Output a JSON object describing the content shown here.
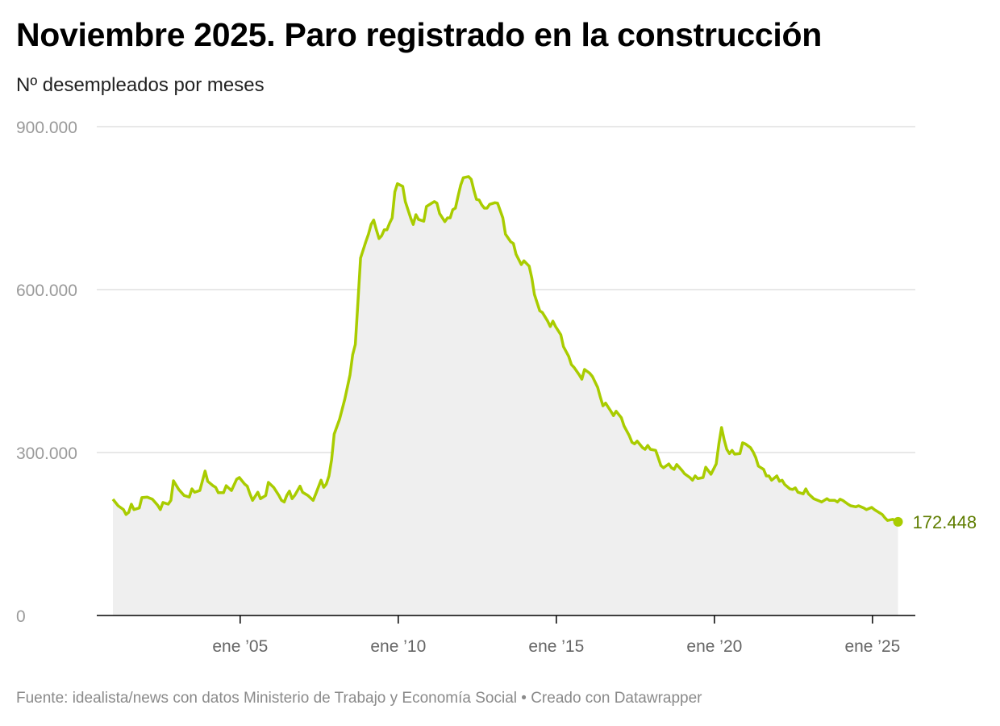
{
  "title": "Noviembre 2025. Paro registrado en la construcción",
  "subtitle": "Nº desempleados por meses",
  "footer": "Fuente: idealista/news con datos Ministerio de Trabajo y Economía Social • Creado con Datawrapper",
  "colors": {
    "line": "#a9cc00",
    "area": "#efefef",
    "grid": "#e1e1e1",
    "end_label": "#5f7d00"
  },
  "chart_data": {
    "type": "area",
    "title": "Noviembre 2025. Paro registrado en la construcción",
    "subtitle": "Nº desempleados por meses",
    "xlabel": "",
    "ylabel": "",
    "ylim": [
      0,
      900000
    ],
    "grid": true,
    "y_ticks": [
      {
        "value": 0,
        "label": "0"
      },
      {
        "value": 300000,
        "label": "300.000"
      },
      {
        "value": 600000,
        "label": "600.000"
      },
      {
        "value": 900000,
        "label": "900.000"
      }
    ],
    "x_ticks": [
      {
        "value": "2005-01",
        "label": "ene ’05"
      },
      {
        "value": "2010-01",
        "label": "ene ’10"
      },
      {
        "value": "2015-01",
        "label": "ene ’15"
      },
      {
        "value": "2020-01",
        "label": "ene ’20"
      },
      {
        "value": "2025-01",
        "label": "ene ’25"
      }
    ],
    "end_label": "172.448",
    "x": [
      "2001-01",
      "2001-03",
      "2001-05",
      "2001-06",
      "2001-07",
      "2001-08",
      "2001-09",
      "2001-11",
      "2001-12",
      "2002-02",
      "2002-04",
      "2002-06",
      "2002-07",
      "2002-08",
      "2002-10",
      "2002-11",
      "2002-12",
      "2003-02",
      "2003-04",
      "2003-06",
      "2003-07",
      "2003-08",
      "2003-10",
      "2003-12",
      "2004-01",
      "2004-03",
      "2004-04",
      "2004-05",
      "2004-07",
      "2004-08",
      "2004-10",
      "2004-12",
      "2005-01",
      "2005-03",
      "2005-04",
      "2005-05",
      "2005-06",
      "2005-08",
      "2005-09",
      "2005-11",
      "2005-12",
      "2006-02",
      "2006-04",
      "2006-05",
      "2006-06",
      "2006-07",
      "2006-08",
      "2006-09",
      "2006-10",
      "2006-12",
      "2007-01",
      "2007-03",
      "2007-05",
      "2007-06",
      "2007-08",
      "2007-09",
      "2007-10",
      "2007-11",
      "2007-12",
      "2008-01",
      "2008-03",
      "2008-05",
      "2008-07",
      "2008-08",
      "2008-09",
      "2008-10",
      "2008-11",
      "2009-01",
      "2009-02",
      "2009-03",
      "2009-04",
      "2009-05",
      "2009-06",
      "2009-07",
      "2009-08",
      "2009-09",
      "2009-10",
      "2009-11",
      "2009-12",
      "2010-01",
      "2010-03",
      "2010-04",
      "2010-06",
      "2010-07",
      "2010-08",
      "2010-09",
      "2010-11",
      "2010-12",
      "2011-02",
      "2011-03",
      "2011-04",
      "2011-05",
      "2011-07",
      "2011-08",
      "2011-09",
      "2011-10",
      "2011-11",
      "2011-12",
      "2012-01",
      "2012-02",
      "2012-04",
      "2012-05",
      "2012-06",
      "2012-07",
      "2012-08",
      "2012-09",
      "2012-10",
      "2012-11",
      "2012-12",
      "2013-02",
      "2013-03",
      "2013-05",
      "2013-06",
      "2013-08",
      "2013-09",
      "2013-10",
      "2013-12",
      "2014-01",
      "2014-03",
      "2014-04",
      "2014-05",
      "2014-07",
      "2014-08",
      "2014-10",
      "2014-11",
      "2014-12",
      "2015-01",
      "2015-03",
      "2015-04",
      "2015-06",
      "2015-07",
      "2015-08",
      "2015-09",
      "2015-10",
      "2015-11",
      "2015-12",
      "2016-02",
      "2016-03",
      "2016-05",
      "2016-06",
      "2016-07",
      "2016-08",
      "2016-10",
      "2016-11",
      "2016-12",
      "2017-02",
      "2017-03",
      "2017-05",
      "2017-06",
      "2017-07",
      "2017-08",
      "2017-10",
      "2017-11",
      "2017-12",
      "2018-01",
      "2018-03",
      "2018-04",
      "2018-05",
      "2018-06",
      "2018-08",
      "2018-09",
      "2018-10",
      "2018-11",
      "2019-01",
      "2019-02",
      "2019-04",
      "2019-05",
      "2019-06",
      "2019-07",
      "2019-09",
      "2019-10",
      "2019-12",
      "2020-02",
      "2020-03",
      "2020-04",
      "2020-05",
      "2020-06",
      "2020-07",
      "2020-08",
      "2020-09",
      "2020-11",
      "2020-12",
      "2021-01",
      "2021-03",
      "2021-04",
      "2021-05",
      "2021-06",
      "2021-08",
      "2021-09",
      "2021-10",
      "2021-11",
      "2022-01",
      "2022-02",
      "2022-03",
      "2022-04",
      "2022-06",
      "2022-07",
      "2022-08",
      "2022-09",
      "2022-11",
      "2022-12",
      "2023-01",
      "2023-03",
      "2023-05",
      "2023-06",
      "2023-08",
      "2023-09",
      "2023-11",
      "2023-12",
      "2024-01",
      "2024-02",
      "2024-04",
      "2024-05",
      "2024-07",
      "2024-08",
      "2024-10",
      "2024-11",
      "2025-01",
      "2025-02",
      "2025-04",
      "2025-05",
      "2025-06",
      "2025-07",
      "2025-09",
      "2025-10",
      "2025-11"
    ],
    "values": [
      214000,
      202000,
      195000,
      186000,
      190000,
      205000,
      195000,
      198000,
      217000,
      218000,
      214000,
      203000,
      195000,
      208000,
      205000,
      212000,
      248000,
      232000,
      221000,
      218000,
      233000,
      227000,
      230000,
      266000,
      247000,
      239000,
      236000,
      226000,
      226000,
      239000,
      230000,
      251000,
      254000,
      242000,
      238000,
      224000,
      212000,
      227000,
      215000,
      221000,
      245000,
      236000,
      221000,
      212000,
      209000,
      221000,
      229000,
      215000,
      221000,
      238000,
      227000,
      221000,
      212000,
      224000,
      249000,
      236000,
      242000,
      257000,
      287000,
      334000,
      361000,
      398000,
      443000,
      480000,
      499000,
      576000,
      658000,
      688000,
      702000,
      720000,
      728000,
      710000,
      694000,
      699000,
      710000,
      710000,
      722000,
      732000,
      780000,
      795000,
      790000,
      762000,
      732000,
      720000,
      738000,
      729000,
      726000,
      753000,
      759000,
      762000,
      759000,
      740000,
      725000,
      732000,
      732000,
      747000,
      750000,
      772000,
      792000,
      806000,
      808000,
      803000,
      783000,
      766000,
      765000,
      756000,
      750000,
      750000,
      757000,
      760000,
      759000,
      732000,
      702000,
      688000,
      685000,
      665000,
      646000,
      653000,
      643000,
      621000,
      591000,
      561000,
      558000,
      542000,
      532000,
      542000,
      532000,
      517000,
      495000,
      477000,
      462000,
      457000,
      450000,
      443000,
      435000,
      453000,
      446000,
      440000,
      420000,
      402000,
      386000,
      391000,
      376000,
      368000,
      376000,
      364000,
      349000,
      331000,
      319000,
      316000,
      321000,
      309000,
      306000,
      313000,
      306000,
      304000,
      290000,
      276000,
      272000,
      279000,
      272000,
      269000,
      278000,
      267000,
      261000,
      254000,
      249000,
      257000,
      252000,
      254000,
      273000,
      260000,
      279000,
      316000,
      346000,
      324000,
      306000,
      298000,
      304000,
      297000,
      298000,
      318000,
      316000,
      309000,
      301000,
      291000,
      275000,
      269000,
      257000,
      257000,
      249000,
      257000,
      247000,
      249000,
      241000,
      233000,
      232000,
      235000,
      227000,
      224000,
      233000,
      224000,
      215000,
      211000,
      209000,
      215000,
      212000,
      212000,
      209000,
      214000,
      212000,
      205000,
      202000,
      200000,
      202000,
      198000,
      195000,
      199000,
      195000,
      189000,
      186000,
      180000,
      175000,
      177000,
      174000,
      172448
    ]
  }
}
